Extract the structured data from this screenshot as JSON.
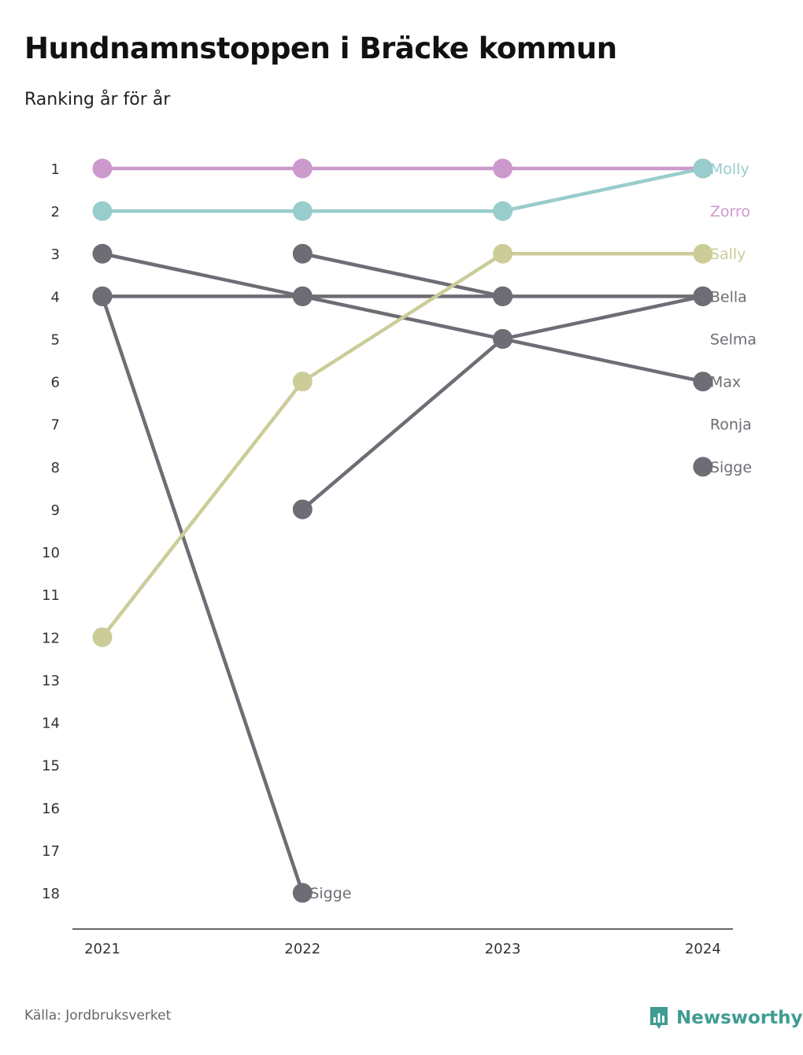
{
  "title": "Hundnamnstoppen i Bräcke kommun",
  "subtitle": "Ranking år för år",
  "source": "Källa: Jordbruksverket",
  "brand": "Newsworthy",
  "brand_icon": "bar-chart-speech-bubble-icon",
  "colors": {
    "purple": "#cc99cc",
    "teal": "#99cccc",
    "olive": "#cccc99",
    "gray": "#6e6d75",
    "brand": "#3f9c92"
  },
  "chart_data": {
    "type": "line",
    "x": [
      "2021",
      "2022",
      "2023",
      "2024"
    ],
    "y_ticks": [
      1,
      2,
      3,
      4,
      5,
      6,
      7,
      8,
      9,
      10,
      11,
      12,
      13,
      14,
      15,
      16,
      17,
      18
    ],
    "y_range": [
      1,
      18
    ],
    "y_inverted": true,
    "grid": false,
    "series": [
      {
        "name": "Zorro",
        "color": "#cc99cc",
        "values": [
          1,
          1,
          1,
          1
        ]
      },
      {
        "name": "Molly",
        "color": "#99cccc",
        "values": [
          2,
          2,
          2,
          1
        ]
      },
      {
        "name": "Sally",
        "color": "#cccc99",
        "values": [
          12,
          6,
          3,
          3
        ]
      },
      {
        "name": "Bella",
        "color": "#6e6d75",
        "values": [
          4,
          4,
          4,
          4
        ]
      },
      {
        "name": "Selma",
        "color": "#6e6d75",
        "values": [
          null,
          9,
          5,
          4
        ]
      },
      {
        "name": "Max",
        "color": "#6e6d75",
        "values": [
          3,
          4,
          5,
          6
        ]
      },
      {
        "name": "Ronja",
        "color": "#6e6d75",
        "values": [
          null,
          3,
          4,
          null
        ]
      },
      {
        "name": "Sigge",
        "color": "#6e6d75",
        "values": [
          4,
          18,
          null,
          8
        ]
      }
    ],
    "end_labels": [
      {
        "text": "Molly",
        "rank": 1,
        "color": "#99cccc"
      },
      {
        "text": "Zorro",
        "rank": 2,
        "color": "#cc99cc"
      },
      {
        "text": "Sally",
        "rank": 3,
        "color": "#cccc99"
      },
      {
        "text": "Bella",
        "rank": 4,
        "color": "#6e6d75"
      },
      {
        "text": "Selma",
        "rank": 5,
        "color": "#6e6d75"
      },
      {
        "text": "Max",
        "rank": 6,
        "color": "#6e6d75"
      },
      {
        "text": "Ronja",
        "rank": 7,
        "color": "#6e6d75"
      },
      {
        "text": "Sigge",
        "rank": 8,
        "color": "#6e6d75"
      }
    ],
    "inline_labels": [
      {
        "text": "Sigge",
        "x": "2022",
        "rank": 18,
        "color": "#6e6d75"
      }
    ]
  }
}
